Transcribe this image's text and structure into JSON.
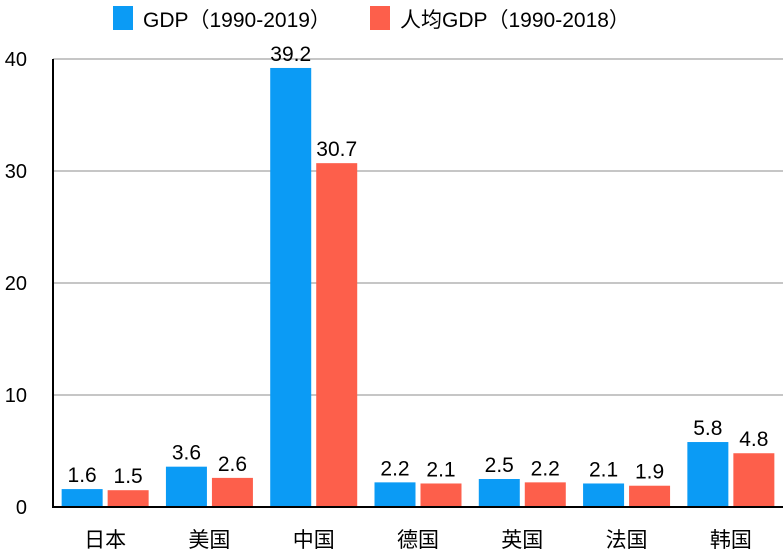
{
  "chart_data": {
    "type": "bar",
    "title": "",
    "xlabel": "",
    "ylabel": "",
    "categories": [
      "日本",
      "美国",
      "中国",
      "德国",
      "英国",
      "法国",
      "韩国"
    ],
    "series": [
      {
        "name": "GDP（1990-2019）",
        "color": "#0b9bf5",
        "values": [
          1.6,
          3.6,
          39.2,
          2.2,
          2.5,
          2.1,
          5.8
        ]
      },
      {
        "name": "人均GDP（1990-2018）",
        "color": "#fd5f4b",
        "values": [
          1.5,
          2.6,
          30.7,
          2.1,
          2.2,
          1.9,
          4.8
        ]
      }
    ],
    "ylim": [
      0,
      40
    ],
    "yticks": [
      0,
      10,
      20,
      30,
      40
    ],
    "grid": true,
    "legend_position": "top-center",
    "data_labels": true
  }
}
